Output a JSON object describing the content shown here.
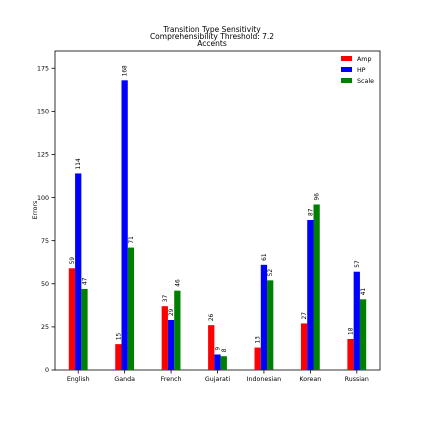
{
  "chart_data": {
    "type": "bar",
    "title_lines": [
      "Transition Type Sensitivity",
      "Comprehensibility Threshold: 7.2",
      "Accents"
    ],
    "xlabel": "",
    "ylabel": "Errors",
    "categories": [
      "English",
      "Ganda",
      "French",
      "Gujarati",
      "Indonesian",
      "Korean",
      "Russian"
    ],
    "series": [
      {
        "name": "Amp",
        "color": "#ff0000",
        "values": [
          59,
          15,
          37,
          26,
          13,
          27,
          18
        ]
      },
      {
        "name": "HP",
        "color": "#0000ff",
        "values": [
          114,
          168,
          29,
          9,
          61,
          87,
          57
        ]
      },
      {
        "name": "Scale",
        "color": "#008000",
        "values": [
          47,
          71,
          46,
          8,
          52,
          96,
          41
        ]
      }
    ],
    "ylim": [
      0,
      185
    ],
    "yticks": [
      0,
      25,
      50,
      75,
      100,
      125,
      150,
      175
    ],
    "legend_position": "top-right",
    "grid": false
  }
}
